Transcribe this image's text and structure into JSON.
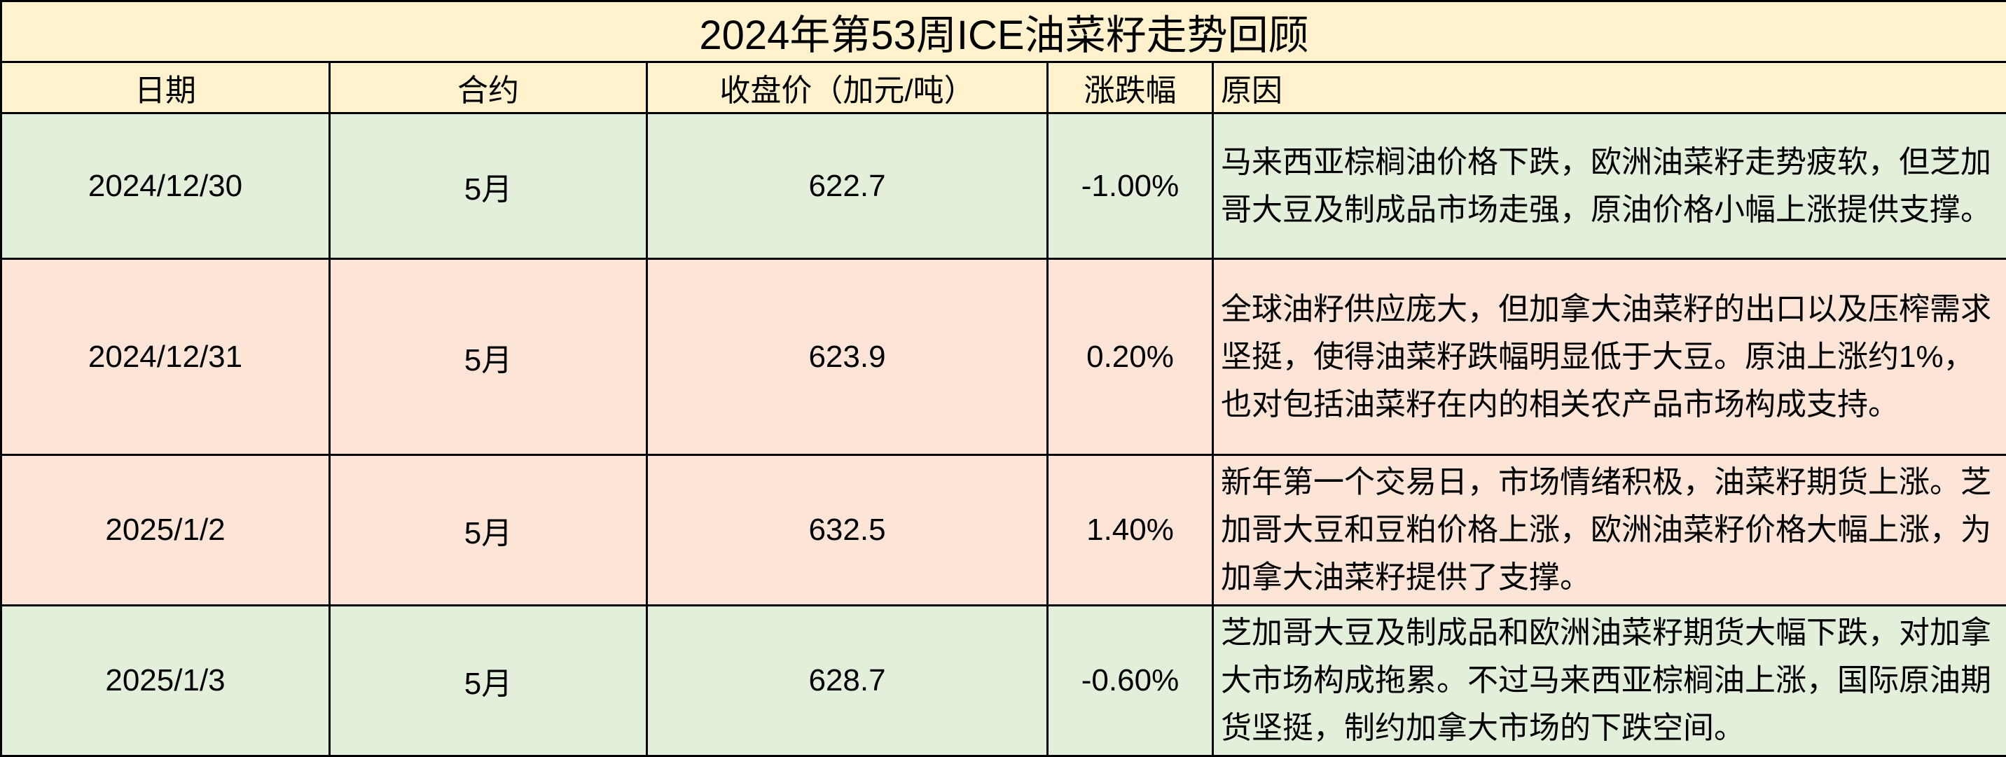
{
  "title": "2024年第53周ICE油菜籽走势回顾",
  "headers": {
    "date": "日期",
    "contract": "合约",
    "close": "收盘价（加元/吨）",
    "change": "涨跌幅",
    "reason": "原因"
  },
  "colors": {
    "header_bg": "#FFF2CC",
    "down_row_bg": "#E2EFDA",
    "up_row_bg": "#FCE4D6"
  },
  "rows": [
    {
      "date": "2024/12/30",
      "contract": "5月",
      "close": "622.7",
      "change": "-1.00%",
      "trend": "down",
      "reason": "马来西亚棕榈油价格下跌，欧洲油菜籽走势疲软，但芝加哥大豆及制成品市场走强，原油价格小幅上涨提供支撑。"
    },
    {
      "date": "2024/12/31",
      "contract": "5月",
      "close": "623.9",
      "change": "0.20%",
      "trend": "up",
      "reason": "全球油籽供应庞大，但加拿大油菜籽的出口以及压榨需求坚挺，使得油菜籽跌幅明显低于大豆。原油上涨约1%，也对包括油菜籽在内的相关农产品市场构成支持。"
    },
    {
      "date": "2025/1/2",
      "contract": "5月",
      "close": "632.5",
      "change": "1.40%",
      "trend": "up",
      "reason": "新年第一个交易日，市场情绪积极，油菜籽期货上涨。芝加哥大豆和豆粕价格上涨，欧洲油菜籽价格大幅上涨，为加拿大油菜籽提供了支撑。"
    },
    {
      "date": "2025/1/3",
      "contract": "5月",
      "close": "628.7",
      "change": "-0.60%",
      "trend": "down",
      "reason": "芝加哥大豆及制成品和欧洲油菜籽期货大幅下跌，对加拿大市场构成拖累。不过马来西亚棕榈油上涨，国际原油期货坚挺，制约加拿大市场的下跌空间。"
    }
  ]
}
